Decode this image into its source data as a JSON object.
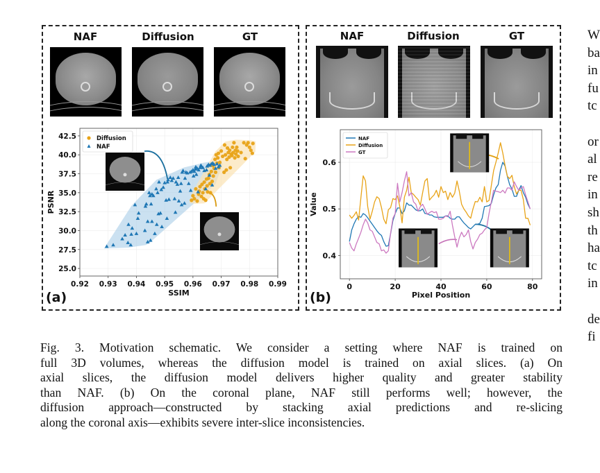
{
  "panel_a": {
    "label": "(a)",
    "image_titles": [
      "NAF",
      "Diffusion",
      "GT"
    ],
    "image_kind": "axial CT slice"
  },
  "panel_b": {
    "label": "(b)",
    "image_titles": [
      "NAF",
      "Diffusion",
      "GT"
    ],
    "image_kind": "coronal CT slice"
  },
  "colors": {
    "naf": "#1f77b4",
    "diffusion": "#e8a317",
    "gt": "#cc79c0",
    "naf_fill": "#a9cde8",
    "diffusion_fill": "#fbe2b4"
  },
  "chart_data": [
    {
      "type": "scatter",
      "title": "",
      "xlabel": "SSIM",
      "ylabel": "PSNR",
      "xlim": [
        0.92,
        0.99
      ],
      "ylim": [
        24.0,
        43.5
      ],
      "xticks": [
        "0.92",
        "0.93",
        "0.94",
        "0.95",
        "0.96",
        "0.97",
        "0.98",
        "0.99"
      ],
      "yticks": [
        "25.0",
        "27.5",
        "30.0",
        "32.5",
        "35.0",
        "37.5",
        "40.0",
        "42.5"
      ],
      "grid": true,
      "legend": "top-left",
      "series": [
        {
          "name": "Diffusion",
          "marker": "circle",
          "points": [
            [
              0.9595,
              34.0
            ],
            [
              0.96,
              34.6
            ],
            [
              0.9605,
              34.2
            ],
            [
              0.961,
              35.5
            ],
            [
              0.9615,
              33.9
            ],
            [
              0.962,
              34.8
            ],
            [
              0.9622,
              35.2
            ],
            [
              0.9625,
              35.8
            ],
            [
              0.963,
              34.5
            ],
            [
              0.9632,
              36.1
            ],
            [
              0.9635,
              35.0
            ],
            [
              0.9638,
              34.2
            ],
            [
              0.964,
              36.4
            ],
            [
              0.9642,
              35.5
            ],
            [
              0.9645,
              34.0
            ],
            [
              0.9648,
              36.8
            ],
            [
              0.965,
              35.9
            ],
            [
              0.9652,
              35.1
            ],
            [
              0.9655,
              36.9
            ],
            [
              0.9658,
              37.4
            ],
            [
              0.966,
              36.2
            ],
            [
              0.9662,
              35.0
            ],
            [
              0.9665,
              37.8
            ],
            [
              0.9668,
              36.5
            ],
            [
              0.967,
              38.6
            ],
            [
              0.9672,
              37.2
            ],
            [
              0.9675,
              38.2
            ],
            [
              0.9678,
              39.4
            ],
            [
              0.968,
              37.7
            ],
            [
              0.9682,
              40.0
            ],
            [
              0.9685,
              38.9
            ],
            [
              0.9688,
              39.6
            ],
            [
              0.969,
              40.2
            ],
            [
              0.9692,
              38.3
            ],
            [
              0.9695,
              39.0
            ],
            [
              0.97,
              40.5
            ],
            [
              0.9705,
              39.8
            ],
            [
              0.971,
              37.7
            ],
            [
              0.9712,
              41.3
            ],
            [
              0.9715,
              40.0
            ],
            [
              0.9718,
              38.0
            ],
            [
              0.972,
              39.4
            ],
            [
              0.9722,
              40.9
            ],
            [
              0.9725,
              40.3
            ],
            [
              0.9728,
              39.7
            ],
            [
              0.973,
              40.6
            ],
            [
              0.9732,
              38.3
            ],
            [
              0.9735,
              40.1
            ],
            [
              0.9738,
              39.9
            ],
            [
              0.974,
              41.0
            ],
            [
              0.9742,
              40.3
            ],
            [
              0.9745,
              41.6
            ],
            [
              0.9748,
              39.6
            ],
            [
              0.975,
              40.6
            ],
            [
              0.9752,
              40.1
            ],
            [
              0.9755,
              41.0
            ],
            [
              0.9758,
              40.5
            ],
            [
              0.976,
              39.8
            ],
            [
              0.977,
              40.3
            ],
            [
              0.978,
              41.6
            ],
            [
              0.9785,
              39.5
            ],
            [
              0.979,
              41.3
            ],
            [
              0.9795,
              41.6
            ],
            [
              0.98,
              41.0
            ],
            [
              0.9805,
              40.6
            ],
            [
              0.981,
              40.2
            ],
            [
              0.9812,
              41.5
            ]
          ]
        },
        {
          "name": "NAF",
          "marker": "triangle",
          "points": [
            [
              0.9295,
              27.9
            ],
            [
              0.9318,
              28.1
            ],
            [
              0.935,
              28.9
            ],
            [
              0.936,
              29.4
            ],
            [
              0.937,
              28.4
            ],
            [
              0.9372,
              30.8
            ],
            [
              0.938,
              28.1
            ],
            [
              0.9382,
              29.5
            ],
            [
              0.9385,
              30.3
            ],
            [
              0.9395,
              33.4
            ],
            [
              0.94,
              29.6
            ],
            [
              0.9405,
              31.6
            ],
            [
              0.9408,
              32.3
            ],
            [
              0.943,
              30.0
            ],
            [
              0.9432,
              33.2
            ],
            [
              0.9435,
              33.5
            ],
            [
              0.944,
              31.2
            ],
            [
              0.944,
              28.5
            ],
            [
              0.9445,
              35.0
            ],
            [
              0.9448,
              34.6
            ],
            [
              0.945,
              28.7
            ],
            [
              0.9452,
              33.5
            ],
            [
              0.9455,
              34.8
            ],
            [
              0.9455,
              31.2
            ],
            [
              0.946,
              34.6
            ],
            [
              0.9465,
              29.6
            ],
            [
              0.947,
              35.5
            ],
            [
              0.9472,
              30.8
            ],
            [
              0.9475,
              35.0
            ],
            [
              0.9478,
              32.2
            ],
            [
              0.948,
              36.4
            ],
            [
              0.9485,
              32.3
            ],
            [
              0.9488,
              35.4
            ],
            [
              0.949,
              30.5
            ],
            [
              0.9495,
              35.7
            ],
            [
              0.95,
              36.3
            ],
            [
              0.9505,
              34.0
            ],
            [
              0.9508,
              31.6
            ],
            [
              0.951,
              36.4
            ],
            [
              0.9512,
              36.7
            ],
            [
              0.9515,
              34.1
            ],
            [
              0.952,
              37.0
            ],
            [
              0.9525,
              36.6
            ],
            [
              0.953,
              36.9
            ],
            [
              0.9535,
              34.2
            ],
            [
              0.9538,
              32.4
            ],
            [
              0.954,
              36.4
            ],
            [
              0.9545,
              36.1
            ],
            [
              0.9548,
              37.0
            ],
            [
              0.955,
              33.9
            ],
            [
              0.9555,
              35.2
            ],
            [
              0.9558,
              36.2
            ],
            [
              0.956,
              33.4
            ],
            [
              0.9562,
              37.7
            ],
            [
              0.9565,
              37.9
            ],
            [
              0.957,
              33.6
            ],
            [
              0.9572,
              36.9
            ],
            [
              0.9575,
              37.7
            ],
            [
              0.958,
              37.6
            ],
            [
              0.9585,
              36.2
            ],
            [
              0.959,
              37.7
            ],
            [
              0.9592,
              35.3
            ],
            [
              0.9595,
              37.8
            ],
            [
              0.96,
              38.0
            ],
            [
              0.9602,
              37.2
            ],
            [
              0.9605,
              37.8
            ],
            [
              0.9608,
              38.1
            ],
            [
              0.961,
              38.4
            ],
            [
              0.9612,
              37.4
            ],
            [
              0.9615,
              38.2
            ],
            [
              0.9618,
              35.1
            ],
            [
              0.962,
              38.0
            ],
            [
              0.9625,
              38.3
            ],
            [
              0.9628,
              38.6
            ],
            [
              0.963,
              38.5
            ],
            [
              0.9635,
              38.3
            ],
            [
              0.964,
              37.9
            ],
            [
              0.9645,
              35.5
            ],
            [
              0.9648,
              38.0
            ],
            [
              0.965,
              38.5
            ],
            [
              0.9655,
              38.7
            ],
            [
              0.9658,
              37.3
            ],
            [
              0.966,
              38.6
            ],
            [
              0.9665,
              38.8
            ],
            [
              0.9668,
              36.0
            ],
            [
              0.967,
              38.9
            ],
            [
              0.9675,
              38.7
            ],
            [
              0.968,
              38.2
            ],
            [
              0.9685,
              38.8
            ],
            [
              0.969,
              38.4
            ],
            [
              0.9695,
              38.6
            ]
          ]
        }
      ],
      "annotations": [
        "inset axial CT image linked to NAF region",
        "inset axial CT image linked to Diffusion region"
      ]
    },
    {
      "type": "line",
      "title": "",
      "xlabel": "Pixel Position",
      "ylabel": "Value",
      "xlim": [
        -4,
        84
      ],
      "ylim": [
        0.35,
        0.67
      ],
      "xticks": [
        "0",
        "20",
        "40",
        "60",
        "80"
      ],
      "yticks": [
        "0.4",
        "0.5",
        "0.6"
      ],
      "grid": true,
      "legend": "top-left",
      "x": [
        0,
        1,
        2,
        3,
        4,
        5,
        6,
        7,
        8,
        9,
        10,
        11,
        12,
        13,
        14,
        15,
        16,
        17,
        18,
        19,
        20,
        21,
        22,
        23,
        24,
        25,
        26,
        27,
        28,
        29,
        30,
        31,
        32,
        33,
        34,
        35,
        36,
        37,
        38,
        39,
        40,
        41,
        42,
        43,
        44,
        45,
        46,
        47,
        48,
        49,
        50,
        51,
        52,
        53,
        54,
        55,
        56,
        57,
        58,
        59,
        60,
        61,
        62,
        63,
        64,
        65,
        66,
        67,
        68,
        69,
        70,
        71,
        72,
        73,
        74,
        75,
        76,
        77,
        78,
        79
      ],
      "series": [
        {
          "name": "NAF",
          "values": [
            0.43,
            0.455,
            0.468,
            0.478,
            0.484,
            0.482,
            0.49,
            0.487,
            0.481,
            0.474,
            0.467,
            0.46,
            0.453,
            0.447,
            0.443,
            0.43,
            0.42,
            0.421,
            0.447,
            0.475,
            0.49,
            0.502,
            0.502,
            0.49,
            0.496,
            0.513,
            0.508,
            0.508,
            0.503,
            0.498,
            0.496,
            0.496,
            0.5,
            0.49,
            0.49,
            0.487,
            0.487,
            0.483,
            0.482,
            0.482,
            0.482,
            0.482,
            0.485,
            0.485,
            0.48,
            0.478,
            0.478,
            0.483,
            0.483,
            0.476,
            0.47,
            0.465,
            0.46,
            0.457,
            0.462,
            0.467,
            0.467,
            0.469,
            0.48,
            0.505,
            0.506,
            0.507,
            0.512,
            0.53,
            0.545,
            0.552,
            0.583,
            0.6,
            0.592,
            0.57,
            0.552,
            0.543,
            0.527,
            0.527,
            0.54,
            0.55,
            0.535,
            0.525,
            0.51,
            0.5
          ]
        },
        {
          "name": "Diffusion",
          "values": [
            0.487,
            0.48,
            0.486,
            0.494,
            0.476,
            0.524,
            0.571,
            0.56,
            0.505,
            0.478,
            0.495,
            0.515,
            0.526,
            0.522,
            0.503,
            0.478,
            0.468,
            0.498,
            0.503,
            0.522,
            0.52,
            0.528,
            0.505,
            0.47,
            0.525,
            0.54,
            0.568,
            0.535,
            0.531,
            0.525,
            0.52,
            0.508,
            0.535,
            0.56,
            0.565,
            0.519,
            0.525,
            0.53,
            0.54,
            0.525,
            0.548,
            0.535,
            0.538,
            0.52,
            0.535,
            0.525,
            0.534,
            0.56,
            0.538,
            0.51,
            0.5,
            0.493,
            0.485,
            0.48,
            0.5,
            0.516,
            0.515,
            0.525,
            0.515,
            0.548,
            0.515,
            0.518,
            0.55,
            0.582,
            0.6,
            0.62,
            0.642,
            0.62,
            0.593,
            0.57,
            0.565,
            0.572,
            0.548,
            0.532,
            0.54,
            0.54,
            0.52,
            0.48,
            0.48,
            0.465
          ]
        },
        {
          "name": "GT",
          "values": [
            0.428,
            0.416,
            0.41,
            0.425,
            0.437,
            0.45,
            0.466,
            0.478,
            0.47,
            0.455,
            0.452,
            0.44,
            0.428,
            0.425,
            0.41,
            0.412,
            0.405,
            0.41,
            0.448,
            0.48,
            0.49,
            0.555,
            0.515,
            0.535,
            0.56,
            0.58,
            0.528,
            0.535,
            0.515,
            0.51,
            0.495,
            0.505,
            0.51,
            0.5,
            0.488,
            0.492,
            0.495,
            0.492,
            0.494,
            0.478,
            0.478,
            0.48,
            0.485,
            0.483,
            0.495,
            0.465,
            0.44,
            0.418,
            0.438,
            0.45,
            0.44,
            0.445,
            0.455,
            0.43,
            0.414,
            0.428,
            0.435,
            0.445,
            0.448,
            0.455,
            0.46,
            0.49,
            0.515,
            0.54,
            0.538,
            0.537,
            0.535,
            0.54,
            0.534,
            0.545,
            0.545,
            0.54,
            0.558,
            0.548,
            0.54,
            0.545,
            0.548,
            0.53,
            0.515,
            0.5
          ]
        }
      ],
      "annotations": [
        "inset coronal image (top, linked to Diffusion peak)",
        "inset coronal image (bottom-left, linked to GT)",
        "inset coronal image (bottom-right, linked to NAF)"
      ]
    }
  ],
  "caption": {
    "lines": [
      "Fig. 3.  Motivation schematic. We consider a setting where NAF is trained on",
      "full 3D volumes, whereas the diffusion model is trained on axial slices. (a) On",
      "axial slices, the diffusion model delivers higher quality and greater stability",
      "than NAF. (b) On the coronal plane, NAF still performs well; however, the",
      "diffusion approach—constructed by stacking axial predictions and re-slicing",
      "along the coronal axis—exhibits severe inter-slice inconsistencies."
    ]
  },
  "right_column_fragments": [
    "W",
    "ba",
    "in",
    "fu",
    "tc",
    "",
    "or",
    "al",
    "re",
    "in",
    "sh",
    "th",
    "ha",
    "tc",
    "in",
    "",
    "de",
    "fi"
  ]
}
